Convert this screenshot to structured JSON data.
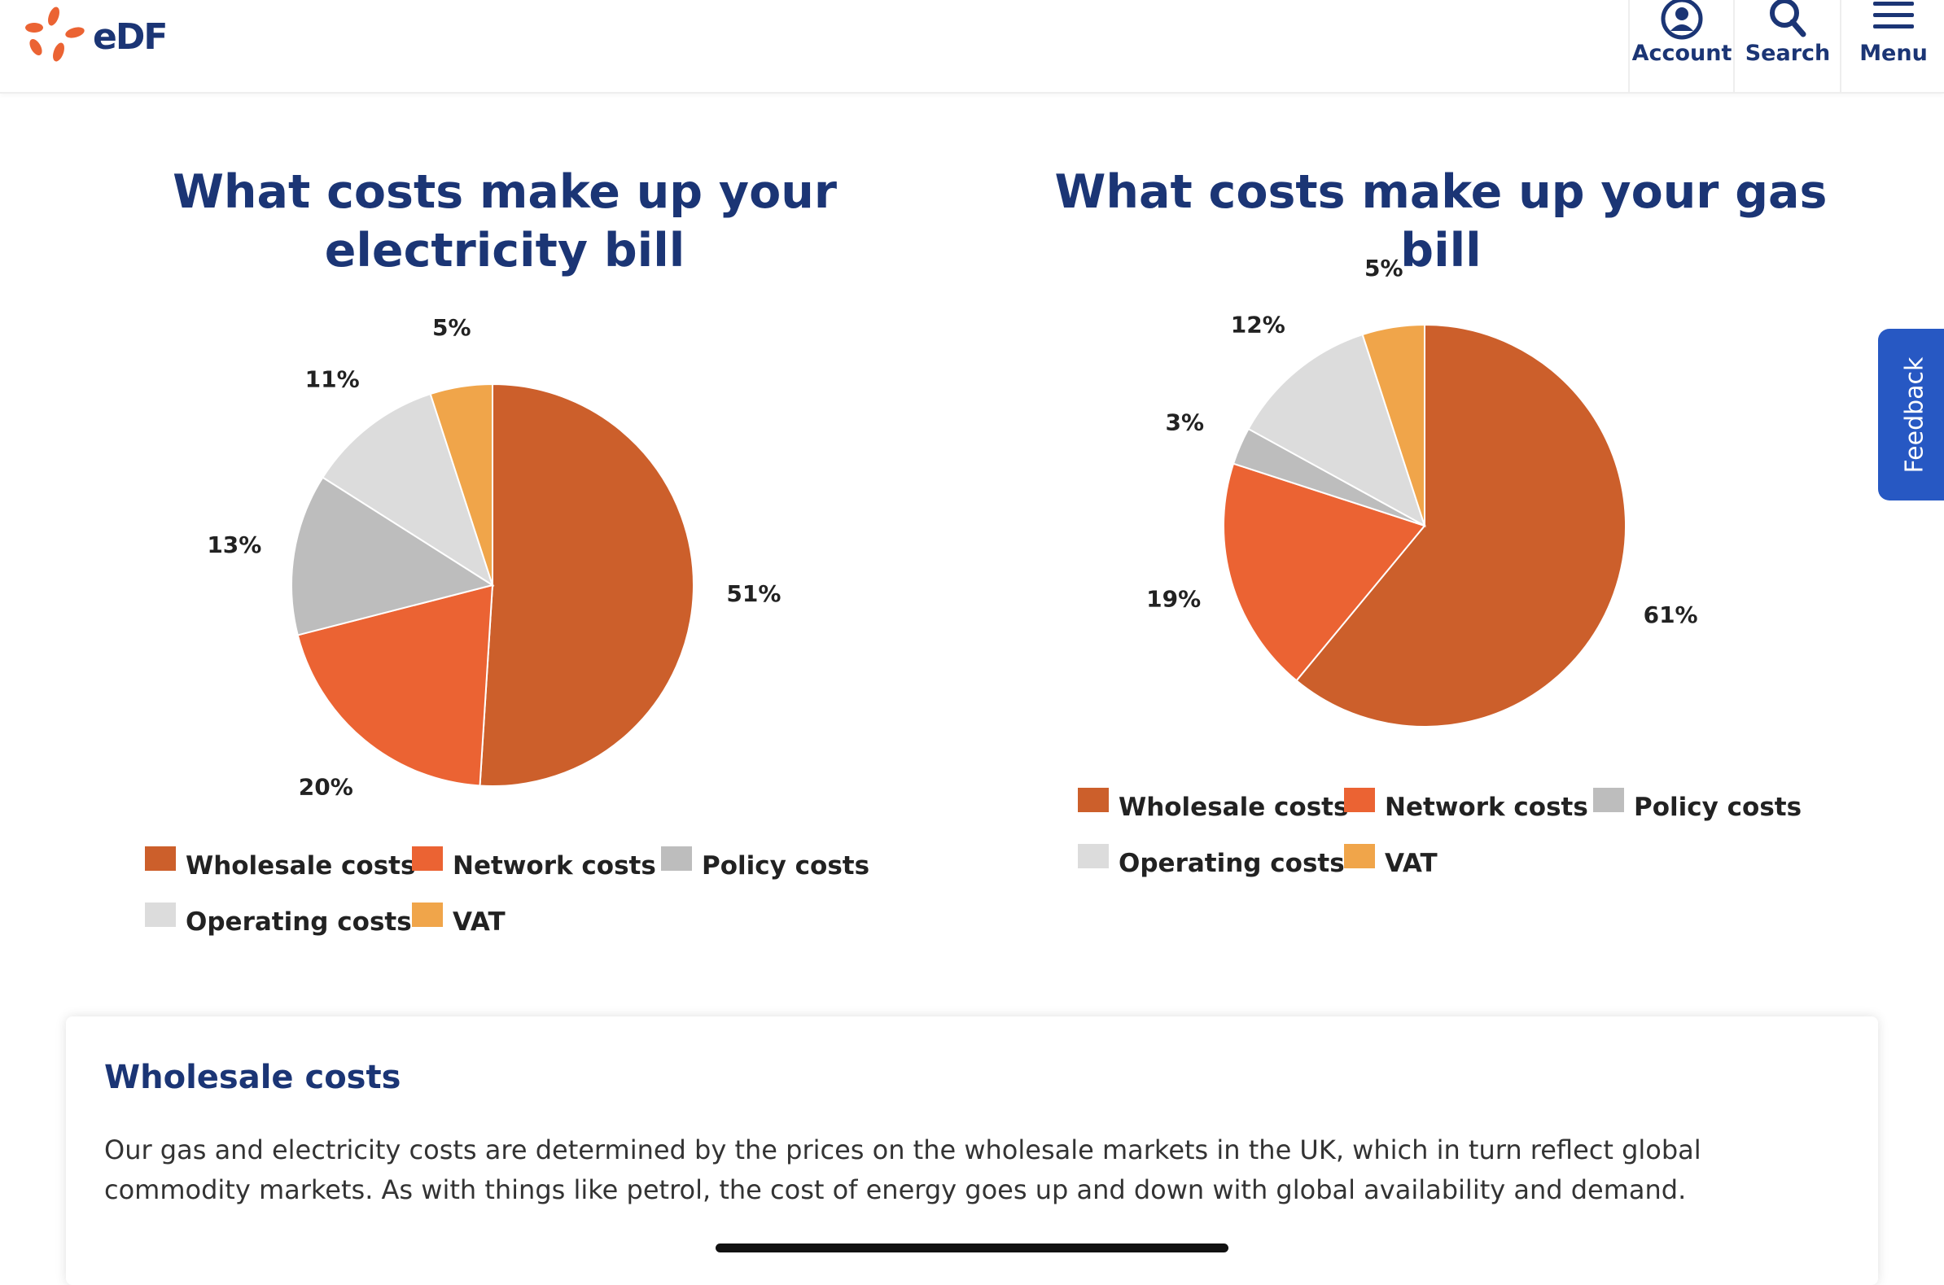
{
  "header": {
    "logo_text": "eDF",
    "nav": [
      {
        "label": "Account",
        "icon": "account-icon"
      },
      {
        "label": "Search",
        "icon": "search-icon"
      },
      {
        "label": "Menu",
        "icon": "menu-icon"
      }
    ]
  },
  "feedback_label": "Feedback",
  "colors": {
    "wholesale": "#CC5F2B",
    "network": "#EB6333",
    "policy": "#BDBDBD",
    "operating": "#DCDCDC",
    "vat": "#F0A54A",
    "navy": "#1B3575"
  },
  "chart_data": [
    {
      "type": "pie",
      "title": "What costs make up your electricity bill",
      "categories": [
        "Wholesale costs",
        "Network costs",
        "Policy costs",
        "Operating costs",
        "VAT"
      ],
      "values": [
        51,
        20,
        13,
        11,
        5
      ],
      "labels": [
        "51%",
        "20%",
        "13%",
        "11%",
        "5%"
      ],
      "legend": "bottom"
    },
    {
      "type": "pie",
      "title": "What costs make up your gas bill",
      "categories": [
        "Wholesale costs",
        "Network costs",
        "Policy costs",
        "Operating costs",
        "VAT"
      ],
      "values": [
        61,
        19,
        3,
        12,
        5
      ],
      "labels": [
        "61%",
        "19%",
        "3%",
        "12%",
        "5%"
      ],
      "legend": "bottom"
    }
  ],
  "card": {
    "heading": "Wholesale costs",
    "body": "Our gas and electricity costs are determined by the prices on the wholesale markets in the UK, which in turn reflect global commodity markets. As with things like petrol, the cost of energy goes up and down with global availability and demand."
  }
}
